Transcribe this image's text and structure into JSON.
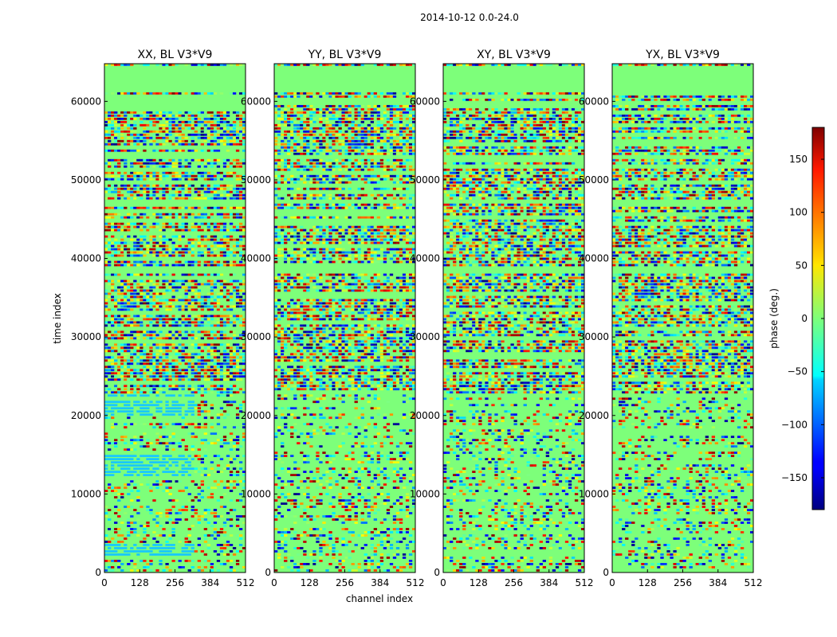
{
  "chart_data": {
    "type": "heatmap",
    "suptitle": "2014-10-12 0.0-24.0",
    "xlabel": "channel index",
    "ylabel": "time index",
    "x_range": [
      0,
      512
    ],
    "y_range": [
      0,
      64800
    ],
    "x_ticks": [
      "0",
      "128",
      "256",
      "384",
      "512"
    ],
    "x_tick_values": [
      0,
      128,
      256,
      384,
      512
    ],
    "y_ticks": [
      "0",
      "10000",
      "20000",
      "30000",
      "40000",
      "50000",
      "60000"
    ],
    "y_tick_values": [
      0,
      10000,
      20000,
      30000,
      40000,
      50000,
      60000
    ],
    "colormap": "jet",
    "colorbar": {
      "label": "phase (deg.)",
      "range": [
        -180,
        180
      ],
      "ticks": [
        "−150",
        "−100",
        "−50",
        "0",
        "50",
        "100",
        "150"
      ],
      "tick_values": [
        -150,
        -100,
        -50,
        0,
        50,
        100,
        150
      ]
    },
    "panels": [
      {
        "title": "XX, BL V3*V9",
        "blue_band_segments": [
          [
            2000,
            3800
          ],
          [
            11800,
            15000
          ],
          [
            20000,
            22500
          ]
        ],
        "flag_break_channel": 330
      },
      {
        "title": "YY, BL V3*V9",
        "blue_band_segments": [],
        "flag_break_channel": 330
      },
      {
        "title": "XY, BL V3*V9",
        "blue_band_segments": [],
        "flag_break_channel": null
      },
      {
        "title": "YX, BL V3*V9",
        "blue_band_segments": [],
        "flag_break_channel": null
      }
    ],
    "flagged_time_ranges": [
      [
        61000,
        64200
      ],
      [
        59500,
        60100
      ],
      [
        52500,
        53000
      ],
      [
        47000,
        47500
      ],
      [
        38000,
        38800
      ]
    ]
  }
}
